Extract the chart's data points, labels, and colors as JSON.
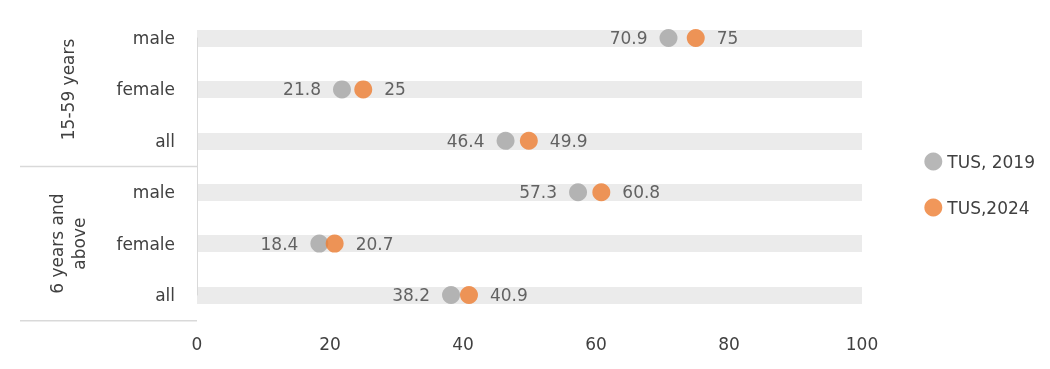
{
  "chart_data": {
    "type": "scatter",
    "orientation": "horizontal",
    "categories": [
      "male",
      "female",
      "all",
      "male",
      "female",
      "all"
    ],
    "series": [
      {
        "name": "TUS, 2019",
        "color": "#a5a5a5",
        "values": [
          70.9,
          21.8,
          46.4,
          57.3,
          18.4,
          38.2
        ]
      },
      {
        "name": "TUS,2024",
        "color": "#ed7d31",
        "values": [
          75,
          25,
          49.9,
          60.8,
          20.7,
          40.9
        ]
      }
    ],
    "xlim": [
      0,
      100
    ],
    "xticks": [
      0,
      20,
      40,
      60,
      80,
      100
    ],
    "annotations": [
      "15-59 years",
      "6 years and\nabove"
    ],
    "grid": "y",
    "legend": "right",
    "marker": "circle",
    "data_labels": true
  }
}
